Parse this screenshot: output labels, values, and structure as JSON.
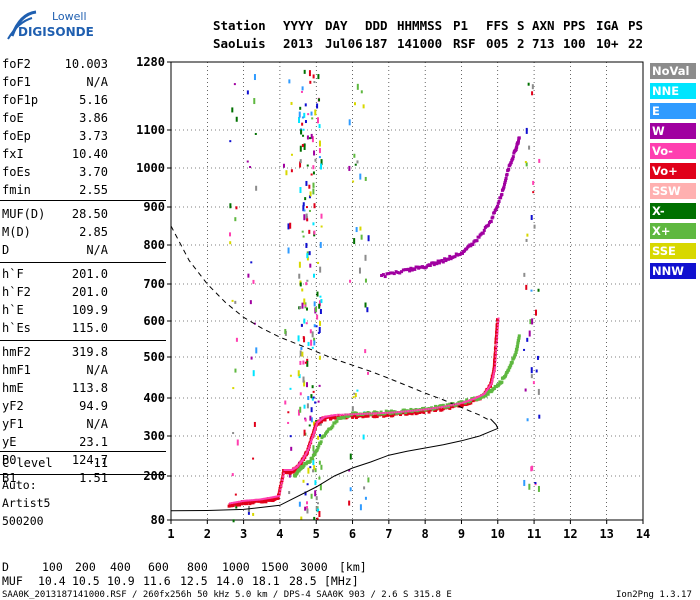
{
  "logo": {
    "line1": "Lowell",
    "line2": "DIGISONDE"
  },
  "header": {
    "row1": [
      "Station",
      "YYYY",
      "DAY",
      "DDD",
      "HHMMSS",
      "P1",
      "FFS",
      "S",
      "AXN",
      "PPS",
      "IGA",
      "PS"
    ],
    "row2": [
      "SaoLuis",
      "2013",
      "Jul06",
      "187",
      "141000",
      "RSF",
      "005",
      "2",
      "713",
      "100",
      "10+",
      "22"
    ]
  },
  "params": [
    {
      "name": "foF2",
      "value": "10.003"
    },
    {
      "name": "foF1",
      "value": "N/A"
    },
    {
      "name": "foF1p",
      "value": "5.16"
    },
    {
      "name": "foE",
      "value": "3.86"
    },
    {
      "name": "foEp",
      "value": "3.73"
    },
    {
      "name": "fxI",
      "value": "10.40"
    },
    {
      "name": "foEs",
      "value": "3.70"
    },
    {
      "name": "fmin",
      "value": "2.55"
    },
    {
      "name": "MUF(D)",
      "value": "28.50"
    },
    {
      "name": "M(D)",
      "value": "2.85"
    },
    {
      "name": "D",
      "value": "N/A"
    },
    {
      "name": "h`F",
      "value": "201.0"
    },
    {
      "name": "h`F2",
      "value": "201.0"
    },
    {
      "name": "h`E",
      "value": "109.9"
    },
    {
      "name": "h`Es",
      "value": "115.0"
    },
    {
      "name": "hmF2",
      "value": "319.8"
    },
    {
      "name": "hmF1",
      "value": "N/A"
    },
    {
      "name": "hmE",
      "value": "113.8"
    },
    {
      "name": "yF2",
      "value": "94.9"
    },
    {
      "name": "yF1",
      "value": "N/A"
    },
    {
      "name": "yE",
      "value": "23.1"
    },
    {
      "name": "B0",
      "value": "124.7"
    },
    {
      "name": "B1",
      "value": "1.51"
    },
    {
      "name": "C-level",
      "value": "11"
    }
  ],
  "auto": {
    "line1": "Auto:",
    "line2": "Artist5",
    "line3": "500200"
  },
  "legend": [
    {
      "label": "NoVal",
      "color": "#8c8c8c"
    },
    {
      "label": "NNE",
      "color": "#00e5ff"
    },
    {
      "label": "E",
      "color": "#2f9bff"
    },
    {
      "label": "W",
      "color": "#a000a0"
    },
    {
      "label": "Vo-",
      "color": "#ff3fb0"
    },
    {
      "label": "Vo+",
      "color": "#e0001a"
    },
    {
      "label": "SSW",
      "color": "#ffb0b0"
    },
    {
      "label": "X-",
      "color": "#007000"
    },
    {
      "label": "X+",
      "color": "#5fb840"
    },
    {
      "label": "SSE",
      "color": "#d8d800"
    },
    {
      "label": "NNW",
      "color": "#1010d0"
    }
  ],
  "mufTable": {
    "dLabel": "D",
    "distances": [
      "100",
      "200",
      "400",
      "600",
      "800",
      "1000",
      "1500",
      "3000"
    ],
    "dUnit": "[km]",
    "mufLabel": "MUF",
    "mufs": [
      "10.4",
      "10.5",
      "10.9",
      "11.6",
      "12.5",
      "14.0",
      "18.1",
      "28.5"
    ],
    "mufUnit": "[MHz]"
  },
  "footer": {
    "left": "SAA0K_2013187141000.RSF / 260fx256h 50 kHz 5.0 km / DPS-4 SAA0K 903 / 2.6 S 315.8 E",
    "right": "Ion2Png 1.3.17"
  },
  "chart_data": {
    "type": "scatter",
    "xlim": [
      1,
      14
    ],
    "ylim": [
      80,
      1280
    ],
    "xticks": [
      "1",
      "2",
      "3",
      "4",
      "5",
      "6",
      "7",
      "8",
      "9",
      "10",
      "11",
      "12",
      "13",
      "14"
    ],
    "yticks": [
      "80",
      "200",
      "300",
      "400",
      "500",
      "600",
      "700",
      "800",
      "900",
      "1000",
      "1100",
      "1280"
    ],
    "y_scale": "nonlinear",
    "grid": true,
    "series": [
      {
        "role": "ordinary-trace",
        "color": "#e0001a",
        "x": [
          2.6,
          3.0,
          3.4,
          3.7,
          3.95,
          4.1,
          4.3,
          4.45,
          4.6,
          4.75,
          4.9,
          5.0,
          5.2,
          5.5,
          6.0,
          6.5,
          7.0,
          7.5,
          8.0,
          8.5,
          9.0,
          9.3,
          9.6,
          9.8,
          9.9,
          9.95,
          10.0
        ],
        "y": [
          120,
          127,
          130,
          135,
          140,
          210,
          210,
          218,
          235,
          260,
          300,
          330,
          345,
          350,
          352,
          354,
          356,
          360,
          365,
          372,
          382,
          392,
          405,
          430,
          470,
          540,
          610
        ]
      },
      {
        "role": "extraordinary-trace",
        "color": "#5fb840",
        "x": [
          4.4,
          4.6,
          4.9,
          5.2,
          5.6,
          6.0,
          6.5,
          7.0,
          7.5,
          8.0,
          8.5,
          9.0,
          9.5,
          9.8,
          10.1,
          10.3,
          10.5,
          10.6
        ],
        "y": [
          200,
          220,
          245,
          300,
          345,
          358,
          360,
          362,
          365,
          370,
          378,
          388,
          400,
          415,
          440,
          470,
          510,
          560
        ]
      },
      {
        "role": "second-hop-trace",
        "color": "#a000a0",
        "x": [
          6.8,
          7.5,
          8.0,
          8.5,
          9.0,
          9.4,
          9.8,
          10.1,
          10.3,
          10.5,
          10.6
        ],
        "y": [
          720,
          735,
          745,
          760,
          780,
          810,
          860,
          930,
          1000,
          1050,
          1080
        ]
      },
      {
        "role": "fitted-profile-solid",
        "color": "#000000",
        "x": [
          1.0,
          2.0,
          3.0,
          4.0,
          5.0,
          5.5,
          6.0,
          6.5,
          7.0,
          7.5,
          8.0,
          8.5,
          9.0,
          9.5,
          9.8,
          10.0,
          9.95,
          9.8
        ],
        "y": [
          105,
          106,
          109,
          120,
          170,
          200,
          220,
          235,
          252,
          262,
          270,
          278,
          288,
          300,
          312,
          320,
          330,
          345
        ]
      },
      {
        "role": "fitted-profile-dashed",
        "color": "#000000",
        "x": [
          1.0,
          1.5,
          2.0,
          2.5,
          3.0,
          3.5,
          4.0,
          4.5,
          5.0,
          5.5,
          6.0,
          6.5,
          7.0,
          7.5,
          8.0,
          8.5,
          9.0,
          9.5,
          9.8
        ],
        "y": [
          850,
          760,
          700,
          650,
          610,
          580,
          555,
          535,
          515,
          495,
          480,
          465,
          448,
          430,
          412,
          395,
          375,
          355,
          340
        ]
      }
    ]
  }
}
